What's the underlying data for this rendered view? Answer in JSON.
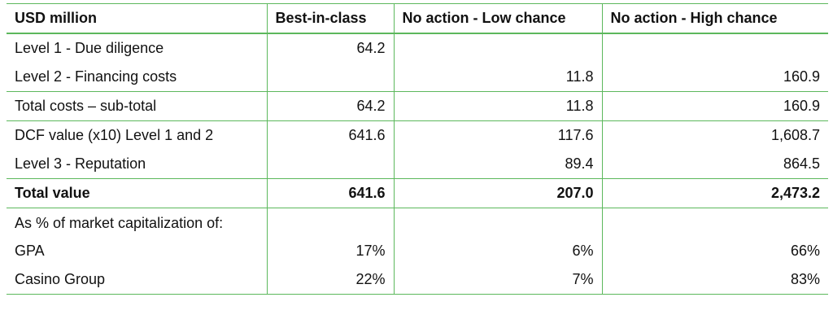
{
  "table": {
    "header": [
      "USD million",
      "Best-in-class",
      "No action - Low chance",
      "No action - High chance"
    ],
    "rows": [
      [
        "Level 1 - Due diligence",
        "64.2",
        null,
        null
      ],
      [
        "Level 2 - Financing costs",
        null,
        "11.8",
        "160.9"
      ],
      [
        "Total costs – sub-total",
        "64.2",
        "11.8",
        "160.9"
      ],
      [
        "DCF value (x10) Level 1 and 2",
        "641.6",
        "117.6",
        "1,608.7"
      ],
      [
        "Level 3 - Reputation",
        null,
        "89.4",
        "864.5"
      ],
      [
        "Total value",
        "641.6",
        "207.0",
        "2,473.2"
      ],
      [
        "As % of market capitalization of:",
        null,
        null,
        null
      ],
      [
        "GPA",
        "17%",
        "6%",
        "66%"
      ],
      [
        "Casino Group",
        "22%",
        "7%",
        "83%"
      ]
    ]
  }
}
